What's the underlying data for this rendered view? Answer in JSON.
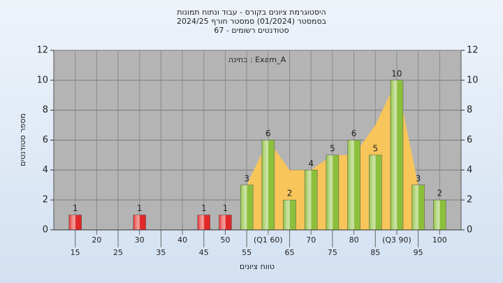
{
  "chart_data": {
    "type": "bar",
    "title": [
      "היסטוגרמת ציונים בקורס - עבוד ונתוח תמונות",
      "בסמסטר  (01/2024)  סמסטר חורף 2024/25",
      "סטודנטים רשומים - 67"
    ],
    "annotation": "בחינה : Exam_A",
    "xlabel": "טווח ציונים",
    "ylabel": "מספר סטודנטים",
    "categories": [
      "15",
      "20",
      "25",
      "30",
      "35",
      "40",
      "45",
      "50",
      "55",
      "(Q1 60)",
      "65",
      "70",
      "75",
      "80",
      "85",
      "(Q3 90)",
      "95",
      "100"
    ],
    "values": [
      1,
      0,
      0,
      1,
      0,
      0,
      1,
      1,
      3,
      6,
      2,
      4,
      5,
      6,
      5,
      10,
      3,
      2
    ],
    "colors": [
      "#e02828",
      null,
      null,
      "#e02828",
      null,
      null,
      "#e02828",
      "#e02828",
      "#8cbf3c",
      "#8cbf3c",
      "#8cbf3c",
      "#8cbf3c",
      "#8cbf3c",
      "#8cbf3c",
      "#8cbf3c",
      "#8cbf3c",
      "#8cbf3c",
      "#8cbf3c"
    ],
    "area": {
      "color": "#f7c55a",
      "values": [
        null,
        null,
        null,
        null,
        null,
        null,
        null,
        null,
        3,
        6,
        4,
        4,
        5,
        5,
        7,
        10,
        3,
        null
      ]
    },
    "ylim": [
      0,
      12
    ],
    "yticks": [
      0,
      2,
      4,
      6,
      8,
      10,
      12
    ],
    "grid": true
  }
}
